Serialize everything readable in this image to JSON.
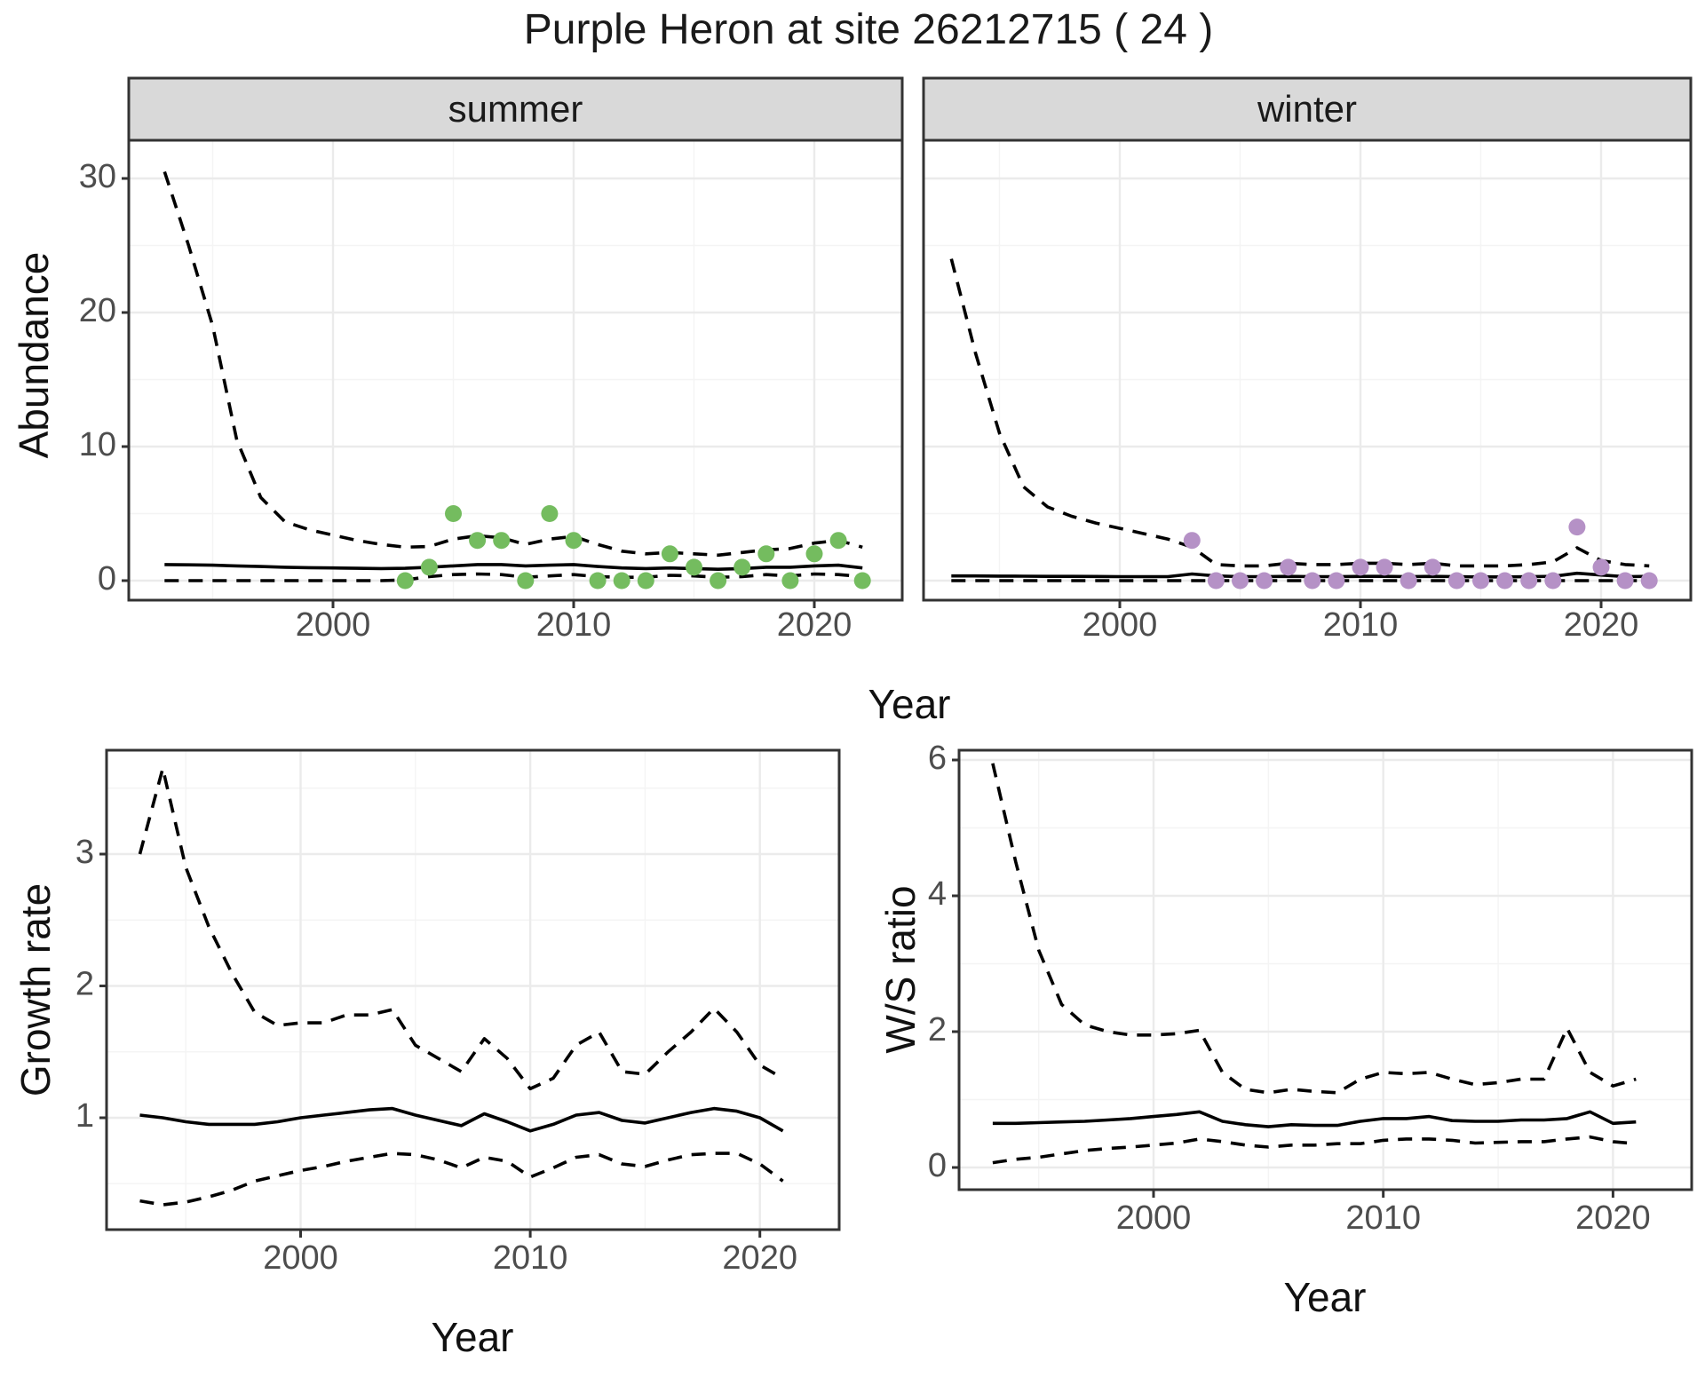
{
  "title": "Purple Heron at site 26212715 ( 24 )",
  "facets": {
    "summer": "summer",
    "winter": "winter"
  },
  "axis_labels": {
    "abundance": "Abundance",
    "year": "Year",
    "growth": "Growth rate",
    "ws": "W/S ratio"
  },
  "colors": {
    "summer_point": "#74BC5F",
    "winter_point": "#B591C6",
    "line": "#000000",
    "strip_bg": "#D9D9D9",
    "panel_border": "#333333",
    "grid_major": "#EBEBEB",
    "grid_minor": "#F4F4F4",
    "tick_text": "#4D4D4D",
    "tick_mark": "#333333"
  },
  "chart_data": [
    {
      "type": "line",
      "panel": "abundance_summer",
      "facet_label": "summer",
      "ylabel": "Abundance",
      "xlabel": "Year",
      "ylim": [
        0,
        32
      ],
      "xlim": [
        1991.5,
        2023.6
      ],
      "yticks": [
        0,
        10,
        20,
        30
      ],
      "xticks": [
        2000,
        2010,
        2020
      ],
      "grid": true,
      "x": [
        1993,
        1994,
        1995,
        1996,
        1997,
        1998,
        1999,
        2000,
        2001,
        2002,
        2003,
        2004,
        2005,
        2006,
        2007,
        2008,
        2009,
        2010,
        2011,
        2012,
        2013,
        2014,
        2015,
        2016,
        2017,
        2018,
        2019,
        2020,
        2021,
        2022
      ],
      "series": [
        {
          "name": "mean",
          "style": "solid",
          "values": [
            1.2,
            1.18,
            1.15,
            1.1,
            1.05,
            1.0,
            0.97,
            0.95,
            0.92,
            0.9,
            0.92,
            1.0,
            1.1,
            1.2,
            1.2,
            1.1,
            1.15,
            1.2,
            1.05,
            0.95,
            0.9,
            0.95,
            0.9,
            0.85,
            0.9,
            1.0,
            1.0,
            1.1,
            1.15,
            0.95
          ]
        },
        {
          "name": "upper_ci",
          "style": "dashed",
          "values": [
            30.5,
            25,
            19,
            10.5,
            6.2,
            4.4,
            3.8,
            3.4,
            3.0,
            2.7,
            2.5,
            2.55,
            3.1,
            3.35,
            3.2,
            2.7,
            3.1,
            3.3,
            2.7,
            2.2,
            2.0,
            2.1,
            2.0,
            1.9,
            2.1,
            2.3,
            2.4,
            2.8,
            3.0,
            2.5
          ]
        },
        {
          "name": "lower_ci",
          "style": "dashed",
          "values": [
            0,
            0,
            0,
            0,
            0,
            0,
            0,
            0,
            0,
            0,
            0.05,
            0.3,
            0.45,
            0.5,
            0.45,
            0.25,
            0.35,
            0.45,
            0.3,
            0.25,
            0.25,
            0.4,
            0.35,
            0.25,
            0.3,
            0.45,
            0.35,
            0.5,
            0.45,
            0.3
          ]
        }
      ],
      "points": {
        "name": "observed_counts_summer",
        "color": "#74BC5F",
        "x": [
          2003,
          2004,
          2005,
          2006,
          2007,
          2008,
          2009,
          2010,
          2011,
          2012,
          2013,
          2014,
          2015,
          2016,
          2017,
          2018,
          2019,
          2020,
          2021,
          2022
        ],
        "y": [
          0,
          1,
          5,
          3,
          3,
          0,
          5,
          3,
          0,
          0,
          0,
          2,
          1,
          0,
          1,
          2,
          0,
          2,
          3,
          0
        ]
      }
    },
    {
      "type": "line",
      "panel": "abundance_winter",
      "facet_label": "winter",
      "ylabel": "Abundance",
      "xlabel": "Year",
      "ylim": [
        0,
        32
      ],
      "xlim": [
        1991.5,
        2023.6
      ],
      "yticks": [
        0,
        10,
        20,
        30
      ],
      "xticks": [
        2000,
        2010,
        2020
      ],
      "grid": true,
      "x": [
        1993,
        1994,
        1995,
        1996,
        1997,
        1998,
        1999,
        2000,
        2001,
        2002,
        2003,
        2004,
        2005,
        2006,
        2007,
        2008,
        2009,
        2010,
        2011,
        2012,
        2013,
        2014,
        2015,
        2016,
        2017,
        2018,
        2019,
        2020,
        2021,
        2022
      ],
      "series": [
        {
          "name": "mean",
          "style": "solid",
          "values": [
            0.35,
            0.35,
            0.34,
            0.33,
            0.32,
            0.32,
            0.31,
            0.3,
            0.3,
            0.3,
            0.5,
            0.35,
            0.3,
            0.3,
            0.32,
            0.3,
            0.3,
            0.32,
            0.32,
            0.3,
            0.32,
            0.3,
            0.28,
            0.28,
            0.3,
            0.32,
            0.55,
            0.42,
            0.3,
            0.32
          ]
        },
        {
          "name": "upper_ci",
          "style": "dashed",
          "values": [
            24,
            17,
            11,
            7,
            5.5,
            4.8,
            4.3,
            3.9,
            3.5,
            3.1,
            2.5,
            1.2,
            1.1,
            1.1,
            1.3,
            1.2,
            1.2,
            1.3,
            1.3,
            1.2,
            1.3,
            1.1,
            1.1,
            1.1,
            1.2,
            1.4,
            2.45,
            1.5,
            1.2,
            1.1
          ]
        },
        {
          "name": "lower_ci",
          "style": "dashed",
          "values": [
            0,
            0,
            0,
            0,
            0,
            0,
            0,
            0,
            0,
            0,
            0,
            0,
            0,
            0,
            0,
            0,
            0,
            0,
            0,
            0,
            0,
            0,
            0,
            0,
            0,
            0,
            0,
            0,
            0,
            0
          ]
        }
      ],
      "points": {
        "name": "observed_counts_winter",
        "color": "#B591C6",
        "x": [
          2003,
          2004,
          2005,
          2006,
          2007,
          2008,
          2009,
          2010,
          2011,
          2012,
          2013,
          2014,
          2015,
          2016,
          2017,
          2018,
          2019,
          2020,
          2021,
          2022
        ],
        "y": [
          3,
          0,
          0,
          0,
          1,
          0,
          0,
          1,
          1,
          0,
          1,
          0,
          0,
          0,
          0,
          0,
          4,
          1,
          0,
          0
        ]
      }
    },
    {
      "type": "line",
      "panel": "growth_rate",
      "ylabel": "Growth rate",
      "xlabel": "Year",
      "ylim": [
        0.15,
        3.8
      ],
      "xlim": [
        1991.5,
        2023.6
      ],
      "yticks": [
        1,
        2,
        3
      ],
      "xticks": [
        2000,
        2010,
        2020
      ],
      "grid": true,
      "x": [
        1993,
        1994,
        1995,
        1996,
        1997,
        1998,
        1999,
        2000,
        2001,
        2002,
        2003,
        2004,
        2005,
        2006,
        2007,
        2008,
        2009,
        2010,
        2011,
        2012,
        2013,
        2014,
        2015,
        2016,
        2017,
        2018,
        2019,
        2020,
        2021
      ],
      "series": [
        {
          "name": "mean",
          "style": "solid",
          "values": [
            1.02,
            1.0,
            0.97,
            0.95,
            0.95,
            0.95,
            0.97,
            1.0,
            1.02,
            1.04,
            1.06,
            1.07,
            1.02,
            0.98,
            0.94,
            1.03,
            0.97,
            0.9,
            0.95,
            1.02,
            1.04,
            0.98,
            0.96,
            1.0,
            1.04,
            1.07,
            1.05,
            1.0,
            0.9
          ]
        },
        {
          "name": "upper_ci",
          "style": "dashed",
          "values": [
            3.0,
            3.65,
            2.9,
            2.45,
            2.1,
            1.8,
            1.7,
            1.72,
            1.72,
            1.78,
            1.78,
            1.82,
            1.55,
            1.45,
            1.35,
            1.6,
            1.45,
            1.22,
            1.3,
            1.55,
            1.65,
            1.35,
            1.33,
            1.5,
            1.65,
            1.83,
            1.65,
            1.4,
            1.3
          ]
        },
        {
          "name": "lower_ci",
          "style": "dashed",
          "values": [
            0.37,
            0.34,
            0.36,
            0.4,
            0.45,
            0.52,
            0.56,
            0.6,
            0.63,
            0.67,
            0.7,
            0.73,
            0.72,
            0.68,
            0.62,
            0.7,
            0.67,
            0.55,
            0.62,
            0.7,
            0.72,
            0.65,
            0.63,
            0.68,
            0.72,
            0.73,
            0.73,
            0.65,
            0.52
          ]
        }
      ]
    },
    {
      "type": "line",
      "panel": "ws_ratio",
      "ylabel": "W/S ratio",
      "xlabel": "Year",
      "ylim": [
        -0.3,
        6.15
      ],
      "xlim": [
        1991.5,
        2023.6
      ],
      "yticks": [
        0,
        2,
        4,
        6
      ],
      "xticks": [
        2000,
        2010,
        2020
      ],
      "grid": true,
      "x": [
        1993,
        1994,
        1995,
        1996,
        1997,
        1998,
        1999,
        2000,
        2001,
        2002,
        2003,
        2004,
        2005,
        2006,
        2007,
        2008,
        2009,
        2010,
        2011,
        2012,
        2013,
        2014,
        2015,
        2016,
        2017,
        2018,
        2019,
        2020,
        2021
      ],
      "series": [
        {
          "name": "mean",
          "style": "solid",
          "values": [
            0.65,
            0.65,
            0.66,
            0.67,
            0.68,
            0.7,
            0.72,
            0.75,
            0.78,
            0.82,
            0.68,
            0.63,
            0.6,
            0.63,
            0.62,
            0.62,
            0.68,
            0.72,
            0.72,
            0.75,
            0.69,
            0.68,
            0.68,
            0.7,
            0.7,
            0.72,
            0.82,
            0.65,
            0.67
          ]
        },
        {
          "name": "upper_ci",
          "style": "dashed",
          "values": [
            5.95,
            4.5,
            3.2,
            2.4,
            2.1,
            2.0,
            1.95,
            1.95,
            1.97,
            2.02,
            1.4,
            1.15,
            1.1,
            1.15,
            1.12,
            1.1,
            1.3,
            1.4,
            1.38,
            1.4,
            1.3,
            1.22,
            1.25,
            1.3,
            1.3,
            2.05,
            1.4,
            1.2,
            1.3
          ]
        },
        {
          "name": "lower_ci",
          "style": "dashed",
          "values": [
            0.07,
            0.12,
            0.15,
            0.2,
            0.25,
            0.28,
            0.3,
            0.33,
            0.36,
            0.42,
            0.38,
            0.33,
            0.3,
            0.33,
            0.33,
            0.35,
            0.35,
            0.4,
            0.42,
            0.42,
            0.4,
            0.36,
            0.37,
            0.38,
            0.38,
            0.42,
            0.45,
            0.38,
            0.35
          ]
        }
      ]
    }
  ]
}
